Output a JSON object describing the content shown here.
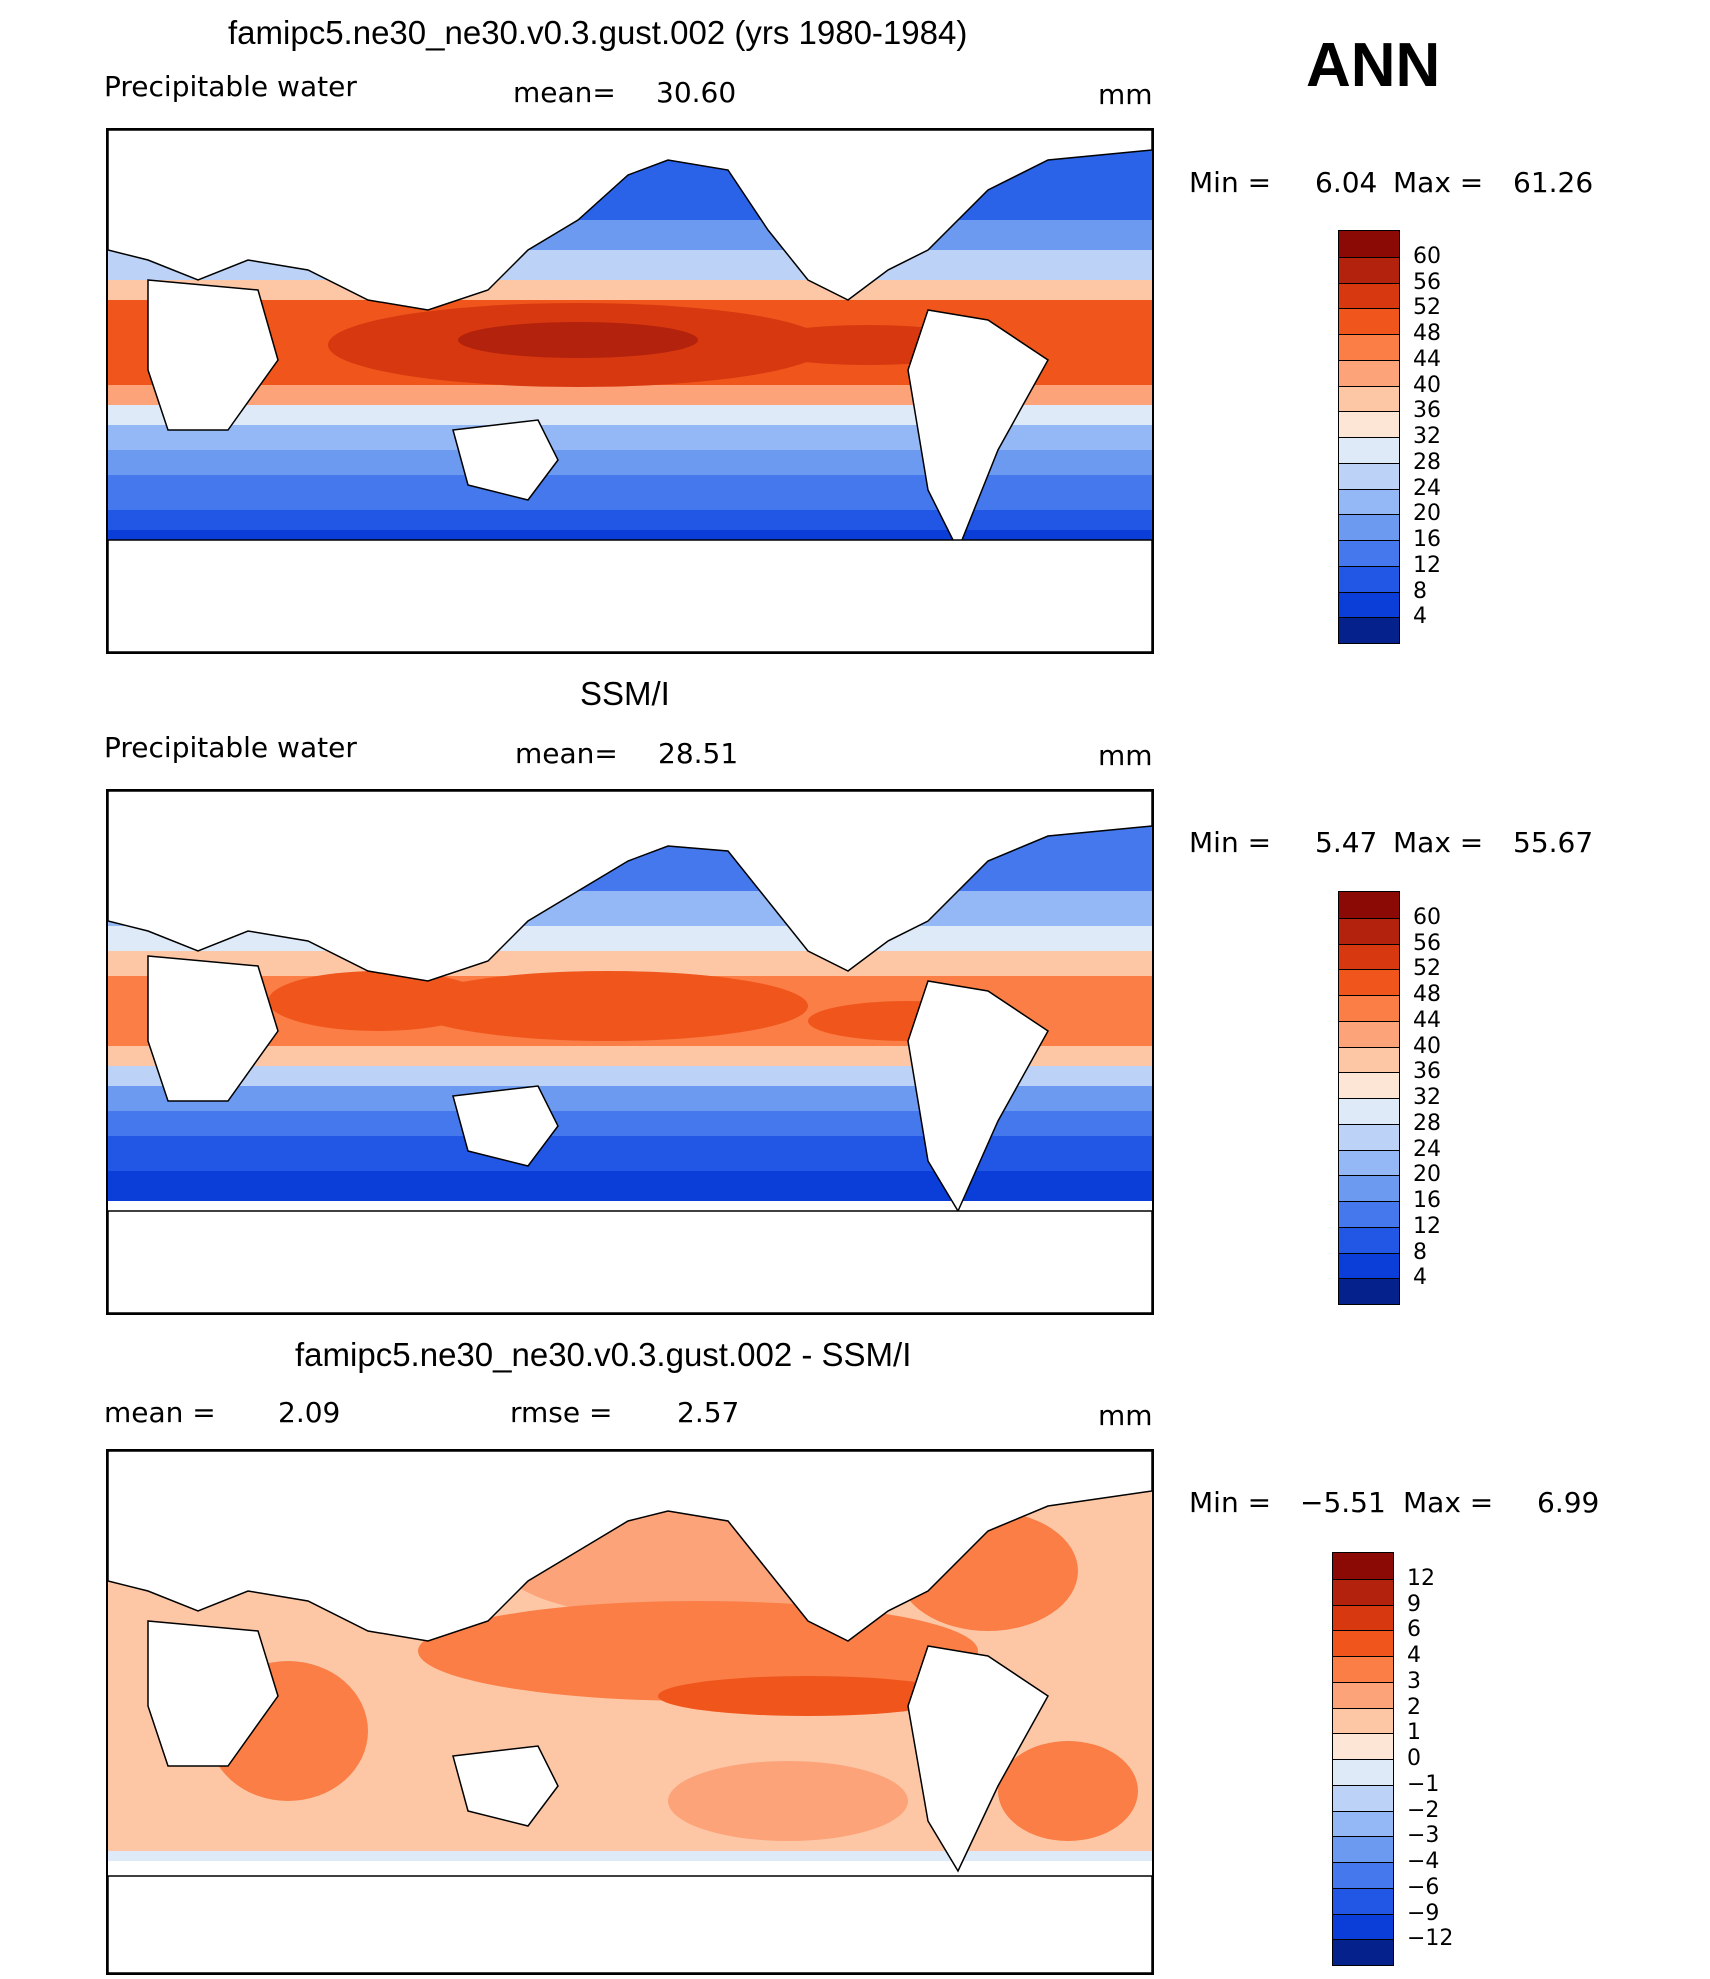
{
  "season": "ANN",
  "units": "mm",
  "panels": [
    {
      "title": "famipc5.ne30_ne30.v0.3.gust.002 (yrs 1980-1984)",
      "variable": "Precipitable water",
      "stat_label": "mean=",
      "stat_value": "30.60",
      "units": "mm",
      "min_label": "Min =",
      "min_value": "6.04",
      "max_label": "Max =",
      "max_value": "61.26",
      "colorbar": [
        "60",
        "56",
        "52",
        "48",
        "44",
        "40",
        "36",
        "32",
        "28",
        "24",
        "20",
        "16",
        "12",
        "8",
        "4"
      ],
      "colors": [
        "#8b0a05",
        "#b3220c",
        "#d8380f",
        "#f0561c",
        "#fa7e46",
        "#fca379",
        "#fdc7a6",
        "#fde6d5",
        "#deeaf8",
        "#bcd3f7",
        "#94b8f5",
        "#6c9af0",
        "#4478ec",
        "#2257e6",
        "#0b3dd8",
        "#04218c"
      ]
    },
    {
      "title": "SSM/I",
      "variable": "Precipitable water",
      "stat_label": "mean=",
      "stat_value": "28.51",
      "units": "mm",
      "min_label": "Min =",
      "min_value": "5.47",
      "max_label": "Max =",
      "max_value": "55.67",
      "colorbar": [
        "60",
        "56",
        "52",
        "48",
        "44",
        "40",
        "36",
        "32",
        "28",
        "24",
        "20",
        "16",
        "12",
        "8",
        "4"
      ],
      "colors": [
        "#8b0a05",
        "#b3220c",
        "#d8380f",
        "#f0561c",
        "#fa7e46",
        "#fca379",
        "#fdc7a6",
        "#fde6d5",
        "#deeaf8",
        "#bcd3f7",
        "#94b8f5",
        "#6c9af0",
        "#4478ec",
        "#2257e6",
        "#0b3dd8",
        "#04218c"
      ]
    },
    {
      "title": "famipc5.ne30_ne30.v0.3.gust.002 - SSM/I",
      "stat_label": "mean =",
      "stat_value": "2.09",
      "rmse_label": "rmse =",
      "rmse_value": "2.57",
      "units": "mm",
      "min_label": "Min =",
      "min_value": "−5.51",
      "max_label": "Max =",
      "max_value": "6.99",
      "colorbar": [
        "12",
        "9",
        "6",
        "4",
        "3",
        "2",
        "1",
        "0",
        "−1",
        "−2",
        "−3",
        "−4",
        "−6",
        "−9",
        "−12"
      ],
      "colors": [
        "#8b0a05",
        "#b3220c",
        "#d8380f",
        "#f0561c",
        "#fa7e46",
        "#fca379",
        "#fdc7a6",
        "#fde6d5",
        "#deeaf8",
        "#bcd3f7",
        "#94b8f5",
        "#6c9af0",
        "#4478ec",
        "#2257e6",
        "#0b3dd8",
        "#04218c"
      ]
    }
  ]
}
